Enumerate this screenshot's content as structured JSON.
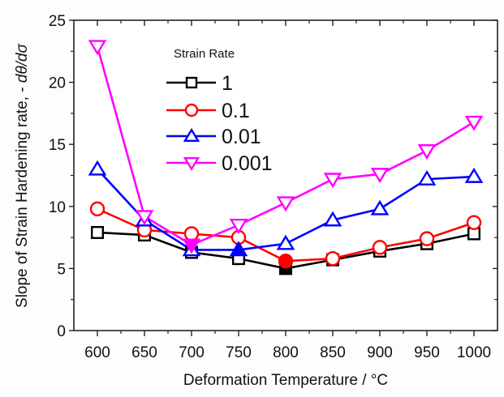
{
  "chart_data": {
    "type": "line",
    "title": "",
    "xlabel": "Deformation Temperature / °C",
    "ylabel_main": "Slope of Strain Hardening rate, - ",
    "ylabel_italic": "dθ/dσ",
    "xlim": [
      575,
      1025
    ],
    "ylim": [
      0,
      25
    ],
    "x_ticks": [
      600,
      650,
      700,
      750,
      800,
      850,
      900,
      950,
      1000
    ],
    "x_tick_labels": [
      "600",
      "650",
      "700",
      "750",
      "800",
      "850",
      "900",
      "950",
      "1000"
    ],
    "y_ticks": [
      0,
      5,
      10,
      15,
      20,
      25
    ],
    "y_tick_labels": [
      "0",
      "5",
      "10",
      "15",
      "20",
      "25"
    ],
    "grid": false,
    "legend": {
      "title": "Strain Rate",
      "placement": "top-left-inside"
    },
    "x": [
      600,
      650,
      700,
      750,
      800,
      850,
      900,
      950,
      1000
    ],
    "series": [
      {
        "name": "1",
        "color": "#000000",
        "marker": "square",
        "values": [
          7.9,
          7.7,
          6.3,
          5.8,
          5.0,
          5.7,
          6.4,
          7.0,
          7.8
        ],
        "filled_points": [
          800
        ]
      },
      {
        "name": "0.1",
        "color": "#ff0000",
        "marker": "circle",
        "values": [
          9.8,
          8.1,
          7.8,
          7.5,
          5.6,
          5.8,
          6.7,
          7.4,
          8.7
        ],
        "filled_points": [
          800
        ]
      },
      {
        "name": "0.01",
        "color": "#0000ff",
        "marker": "triangle-up",
        "values": [
          13.0,
          8.9,
          6.5,
          6.5,
          7.0,
          8.9,
          9.8,
          12.2,
          12.4
        ],
        "filled_points": [
          750
        ]
      },
      {
        "name": "0.001",
        "color": "#ff00ff",
        "marker": "triangle-down",
        "values": [
          22.9,
          9.2,
          6.9,
          8.5,
          10.3,
          12.2,
          12.6,
          14.5,
          16.8
        ],
        "filled_points": [
          700
        ]
      }
    ]
  }
}
